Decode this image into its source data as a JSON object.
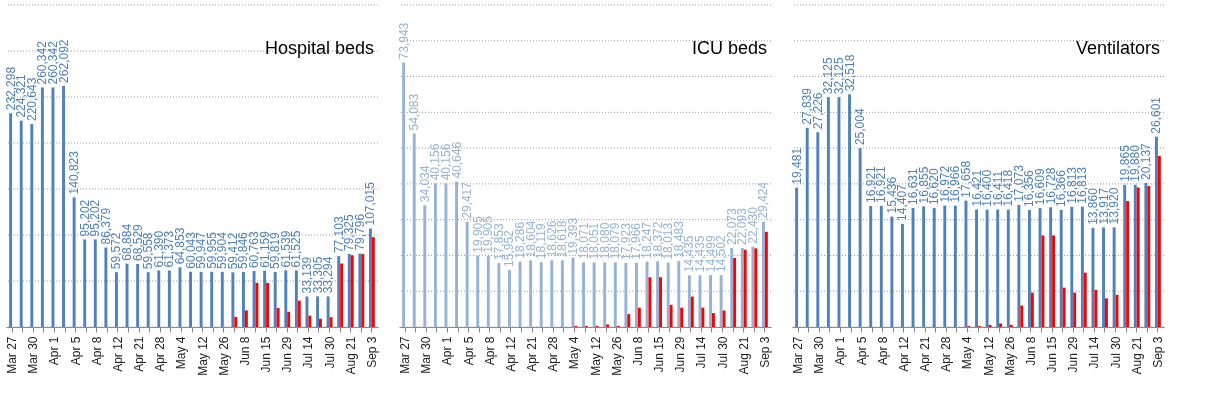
{
  "chart_data": [
    {
      "type": "bar",
      "title": "Hospital beds",
      "categories": [
        "Mar 27",
        null,
        "Mar 30",
        null,
        "Apr 1",
        null,
        "Apr 5",
        null,
        "Apr 8",
        null,
        "Apr 12",
        null,
        "Apr 21",
        null,
        "Apr 28",
        null,
        "May 4",
        null,
        "May 12",
        null,
        "May 26",
        null,
        "Jun 8",
        null,
        "Jun 15",
        null,
        "Jun 29",
        null,
        "Jul 14",
        null,
        "Jul 30",
        null,
        "Aug 21",
        null,
        "Sep 3"
      ],
      "series": [
        {
          "color": "#4f81bd",
          "values": [
            232298,
            224321,
            220643,
            260342,
            260342,
            262092,
            140823,
            95202,
            95202,
            86379,
            59572,
            68884,
            68529,
            59558,
            61390,
            61373,
            64853,
            60043,
            59947,
            59955,
            59904,
            59412,
            59846,
            60763,
            61159,
            59819,
            61539,
            61525,
            33139,
            33305,
            33294,
            77103,
            79325,
            79796,
            107015
          ],
          "value_labels": [
            "232,298",
            "224,321",
            "220,643",
            "260,342",
            "260,342",
            "262,092",
            "140,823",
            "95,202",
            "95,202",
            "86,379",
            "59,572",
            "68,884",
            "68,529",
            "59,558",
            "61,390",
            "61,373",
            "64,853",
            "60,043",
            "59,947",
            "59,955",
            "59,904",
            "59,412",
            "59,846",
            "60,763",
            "61,159",
            "59,819",
            "61,539",
            "61,525",
            "33,139",
            "33,305",
            "33,294",
            "77,103",
            "79,325",
            "79,796",
            "107,015"
          ]
        },
        {
          "color": "#ff0000",
          "values": [
            null,
            null,
            null,
            null,
            null,
            null,
            null,
            null,
            null,
            null,
            null,
            null,
            null,
            null,
            null,
            null,
            null,
            null,
            null,
            null,
            null,
            11000,
            18000,
            48000,
            48000,
            20700,
            16500,
            28600,
            12400,
            9000,
            10700,
            69000,
            78000,
            79300,
            97600
          ]
        }
      ],
      "ylim": [
        0,
        350000
      ],
      "yticks": [
        {
          "value": 0,
          "label": null
        },
        {
          "value": 50000,
          "label": null
        },
        {
          "value": 100000,
          "label": null
        },
        {
          "value": 150000,
          "label": null
        },
        {
          "value": 200000,
          "label": null
        },
        {
          "value": 250000,
          "label": null
        },
        {
          "value": 300000,
          "label": null
        },
        {
          "value": 350000,
          "label": null
        }
      ],
      "grid": "y",
      "tick_labels": "x"
    },
    {
      "type": "bar",
      "title": "ICU beds",
      "categories": [
        "Mar 27",
        null,
        "Mar 30",
        null,
        "Apr 1",
        null,
        "Apr 5",
        null,
        "Apr 8",
        null,
        "Apr 12",
        null,
        "Apr 21",
        null,
        "Apr 28",
        null,
        "May 4",
        null,
        "May 12",
        null,
        "May 26",
        null,
        "Jun 8",
        null,
        "Jun 15",
        null,
        "Jun 29",
        null,
        "Jul 14",
        null,
        "Jul 30",
        null,
        "Aug 21",
        null,
        "Sep 3"
      ],
      "series": [
        {
          "color": "#95b3d7",
          "values": [
            73943,
            54083,
            34034,
            40156,
            40156,
            40646,
            29417,
            19905,
            19905,
            17853,
            15952,
            18286,
            18604,
            18119,
            18626,
            18618,
            19393,
            18071,
            18051,
            18080,
            18079,
            17923,
            17966,
            18247,
            18372,
            18013,
            18483,
            14435,
            14435,
            14499,
            14502,
            22073,
            22093,
            22430,
            29424
          ],
          "value_labels": [
            "73,943",
            "54,083",
            "34,034",
            "40,156",
            "40,156",
            "40,646",
            "29,417",
            "19,905",
            "19,905",
            "17,853",
            "15,952",
            "18,286",
            "18,604",
            "18,119",
            "18,626",
            "18,618",
            "19,393",
            "18,071",
            "18,051",
            "18,080",
            "18,079",
            "17,923",
            "17,966",
            "18,247",
            "18,372",
            "18,013",
            "18,483",
            "14,435",
            "14,435",
            "14,499",
            "14,502",
            "22,073",
            "22,093",
            "22,430",
            "29,424"
          ]
        },
        {
          "color": "#ff0000",
          "values": [
            null,
            null,
            null,
            null,
            null,
            null,
            null,
            null,
            null,
            null,
            null,
            null,
            null,
            null,
            null,
            null,
            300,
            300,
            300,
            700,
            300,
            3600,
            5400,
            13900,
            13900,
            6200,
            5400,
            8500,
            5400,
            3900,
            4600,
            19300,
            21600,
            22000,
            26600
          ]
        }
      ],
      "ylim": [
        0,
        90000
      ],
      "yticks": [
        {
          "value": 0,
          "label": null
        },
        {
          "value": 10000,
          "label": null
        },
        {
          "value": 20000,
          "label": null
        },
        {
          "value": 30000,
          "label": null
        },
        {
          "value": 40000,
          "label": null
        },
        {
          "value": 50000,
          "label": null
        },
        {
          "value": 60000,
          "label": null
        },
        {
          "value": 70000,
          "label": null
        },
        {
          "value": 80000,
          "label": null
        },
        {
          "value": 90000,
          "label": null
        }
      ],
      "grid": "y",
      "tick_labels": "x"
    },
    {
      "type": "bar",
      "title": "Ventilators",
      "categories": [
        "Mar 27",
        null,
        "Mar 30",
        null,
        "Apr 1",
        null,
        "Apr 5",
        null,
        "Apr 8",
        null,
        "Apr 12",
        null,
        "Apr 21",
        null,
        "Apr 28",
        null,
        "May 4",
        null,
        "May 12",
        null,
        "May 26",
        null,
        "Jun 8",
        null,
        "Jun 15",
        null,
        "Jun 29",
        null,
        "Jul 14",
        null,
        "Jul 30",
        null,
        "Aug 21",
        null,
        "Sep 3"
      ],
      "series": [
        {
          "color": "#4f81bd",
          "values": [
            19481,
            27839,
            27226,
            32125,
            32125,
            32518,
            25004,
            16921,
            16921,
            15436,
            14407,
            16631,
            16855,
            16620,
            16972,
            16966,
            17658,
            16421,
            16400,
            16411,
            16418,
            17073,
            16356,
            16609,
            16728,
            16366,
            16813,
            16813,
            13860,
            13917,
            13920,
            19865,
            19880,
            20137,
            26601
          ],
          "value_labels": [
            "19,481",
            "27,839",
            "27,226",
            "32,125",
            "32,125",
            "32,518",
            "25,004",
            "16,921",
            "16,921",
            "15,436",
            "14,407",
            "16,631",
            "16,855",
            "16,620",
            "16,972",
            "16,966",
            "17,658",
            "16,421",
            "16,400",
            "16,411",
            "16,418",
            "17,073",
            "16,356",
            "16,609",
            "16,728",
            "16,366",
            "16,813",
            "16,813",
            "13,860",
            "13,917",
            "13,920",
            "19,865",
            "19,880",
            "20,137",
            "26,601"
          ]
        },
        {
          "color": "#ff0000",
          "values": [
            null,
            null,
            null,
            null,
            null,
            null,
            null,
            null,
            null,
            null,
            null,
            null,
            null,
            null,
            null,
            null,
            130,
            130,
            300,
            500,
            300,
            3000,
            4800,
            12800,
            12800,
            5500,
            4800,
            7600,
            5200,
            4000,
            4500,
            17600,
            19500,
            19700,
            23900
          ]
        }
      ],
      "ylim": [
        0,
        45000
      ],
      "yticks": [
        {
          "value": 0,
          "label": null
        },
        {
          "value": 5000,
          "label": null
        },
        {
          "value": 10000,
          "label": null
        },
        {
          "value": 15000,
          "label": null
        },
        {
          "value": 20000,
          "label": null
        },
        {
          "value": 25000,
          "label": null
        },
        {
          "value": 30000,
          "label": null
        },
        {
          "value": 35000,
          "label": null
        },
        {
          "value": 40000,
          "label": null
        },
        {
          "value": 45000,
          "label": null
        }
      ],
      "grid": "y",
      "tick_labels": "x"
    }
  ]
}
